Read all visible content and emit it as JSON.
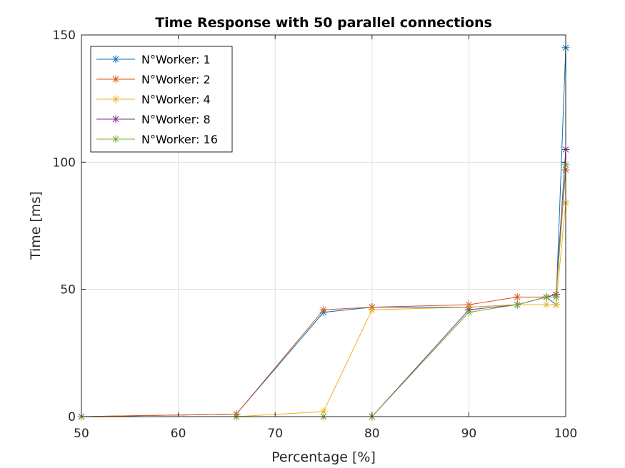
{
  "chart_data": {
    "type": "line",
    "title": "Time Response with 50 parallel connections",
    "xlabel": "Percentage [%]",
    "ylabel": "Time [ms]",
    "xlim": [
      50,
      100
    ],
    "ylim": [
      0,
      150
    ],
    "xticks": [
      50,
      60,
      70,
      80,
      90,
      100
    ],
    "yticks": [
      0,
      50,
      100,
      150
    ],
    "grid": true,
    "legend_position": "top-left",
    "marker": "asterisk",
    "series": [
      {
        "name": "N°Worker: 1",
        "color": "#0072BD",
        "x": [
          50,
          66,
          75,
          80,
          90,
          95,
          98,
          99,
          100
        ],
        "y": [
          0,
          1,
          41,
          43,
          43,
          44,
          47,
          44,
          145
        ]
      },
      {
        "name": "N°Worker: 2",
        "color": "#D95319",
        "x": [
          50,
          66,
          75,
          80,
          90,
          95,
          98,
          99,
          100
        ],
        "y": [
          0,
          1,
          42,
          43,
          44,
          47,
          47,
          48,
          97
        ]
      },
      {
        "name": "N°Worker: 4",
        "color": "#EDB120",
        "x": [
          50,
          66,
          75,
          80,
          90,
          95,
          98,
          99,
          100
        ],
        "y": [
          0,
          0,
          2,
          42,
          43,
          44,
          44,
          44,
          84
        ]
      },
      {
        "name": "N°Worker: 8",
        "color": "#7E2F8E",
        "x": [
          50,
          66,
          75,
          80,
          90,
          95,
          98,
          99,
          100
        ],
        "y": [
          0,
          0,
          0,
          0,
          42,
          44,
          47,
          48,
          105
        ]
      },
      {
        "name": "N°Worker: 16",
        "color": "#77AC30",
        "x": [
          50,
          66,
          75,
          80,
          90,
          95,
          98,
          99,
          100
        ],
        "y": [
          0,
          0,
          0,
          0,
          41,
          44,
          47,
          47,
          99
        ]
      }
    ]
  }
}
